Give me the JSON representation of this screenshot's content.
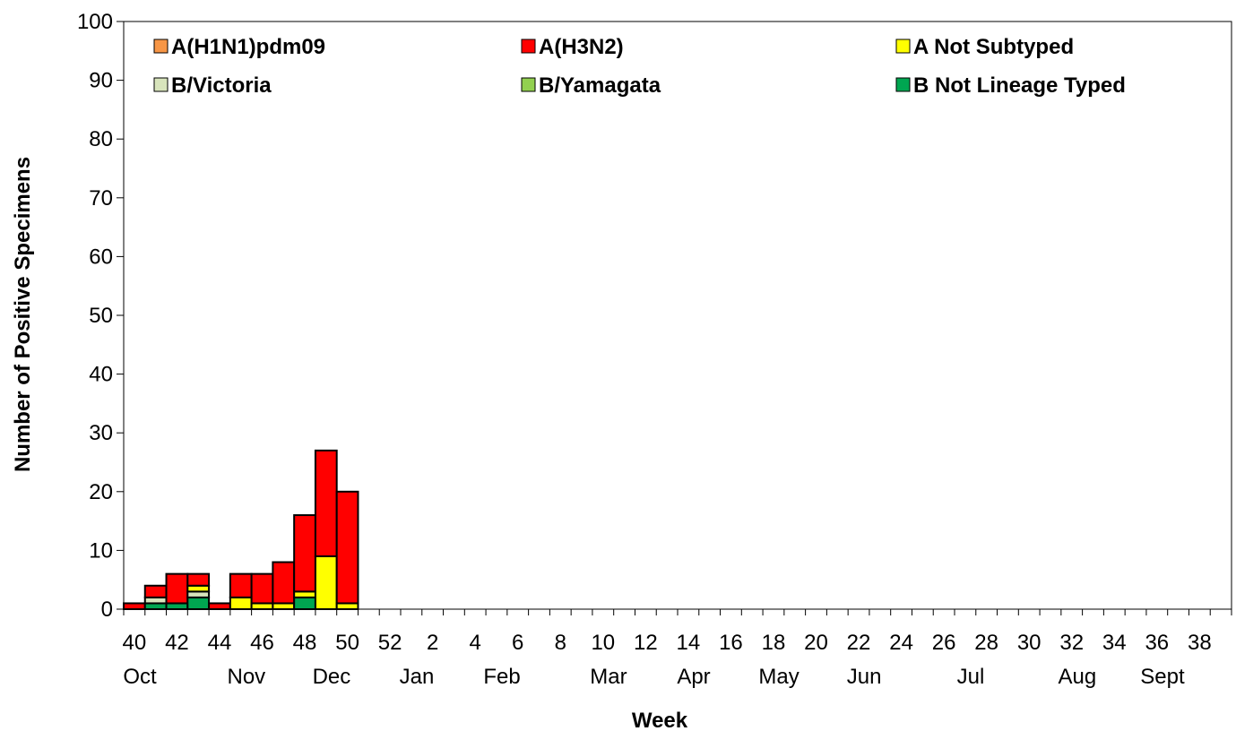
{
  "chart_data": {
    "type": "bar",
    "stacked": true,
    "xlabel": "Week",
    "ylabel": "Number of Positive Specimens",
    "ylim": [
      0,
      100
    ],
    "yticks": [
      0,
      10,
      20,
      30,
      40,
      50,
      60,
      70,
      80,
      90,
      100
    ],
    "weeks": [
      40,
      41,
      42,
      43,
      44,
      45,
      46,
      47,
      48,
      49,
      50,
      51,
      52,
      1,
      2,
      3,
      4,
      5,
      6,
      7,
      8,
      9,
      10,
      11,
      12,
      13,
      14,
      15,
      16,
      17,
      18,
      19,
      20,
      21,
      22,
      23,
      24,
      25,
      26,
      27,
      28,
      29,
      30,
      31,
      32,
      33,
      34,
      35,
      36,
      37,
      38,
      39
    ],
    "week_labels": [
      {
        "week": 40,
        "label": "40"
      },
      {
        "week": 42,
        "label": "42"
      },
      {
        "week": 44,
        "label": "44"
      },
      {
        "week": 46,
        "label": "46"
      },
      {
        "week": 48,
        "label": "48"
      },
      {
        "week": 50,
        "label": "50"
      },
      {
        "week": 52,
        "label": "52"
      },
      {
        "week": 2,
        "label": "2"
      },
      {
        "week": 4,
        "label": "4"
      },
      {
        "week": 6,
        "label": "6"
      },
      {
        "week": 8,
        "label": "8"
      },
      {
        "week": 10,
        "label": "10"
      },
      {
        "week": 12,
        "label": "12"
      },
      {
        "week": 14,
        "label": "14"
      },
      {
        "week": 16,
        "label": "16"
      },
      {
        "week": 18,
        "label": "18"
      },
      {
        "week": 20,
        "label": "20"
      },
      {
        "week": 22,
        "label": "22"
      },
      {
        "week": 24,
        "label": "24"
      },
      {
        "week": 26,
        "label": "26"
      },
      {
        "week": 28,
        "label": "28"
      },
      {
        "week": 30,
        "label": "30"
      },
      {
        "week": 32,
        "label": "32"
      },
      {
        "week": 34,
        "label": "34"
      },
      {
        "week": 36,
        "label": "36"
      },
      {
        "week": 38,
        "label": "38"
      }
    ],
    "month_labels": [
      {
        "week": 40,
        "label": "Oct"
      },
      {
        "week": 45,
        "label": "Nov"
      },
      {
        "week": 49,
        "label": "Dec"
      },
      {
        "week": 1,
        "label": "Jan"
      },
      {
        "week": 5,
        "label": "Feb"
      },
      {
        "week": 10,
        "label": "Mar"
      },
      {
        "week": 14,
        "label": "Apr"
      },
      {
        "week": 18,
        "label": "May"
      },
      {
        "week": 22,
        "label": "Jun"
      },
      {
        "week": 27,
        "label": "Jul"
      },
      {
        "week": 32,
        "label": "Aug"
      },
      {
        "week": 36,
        "label": "Sept"
      }
    ],
    "legend": {
      "position": "top",
      "columns": 3
    },
    "series": [
      {
        "name": "A(H1N1)pdm09",
        "color": "#f79646",
        "values": [
          0,
          0,
          0,
          0,
          0,
          0,
          0,
          0,
          0,
          0,
          0
        ]
      },
      {
        "name": "A(H3N2)",
        "color": "#ff0000",
        "values": [
          1,
          2,
          5,
          2,
          1,
          4,
          5,
          7,
          13,
          18,
          19
        ]
      },
      {
        "name": "A Not Subtyped",
        "color": "#ffff00",
        "values": [
          0,
          0,
          0,
          1,
          0,
          2,
          1,
          1,
          1,
          9,
          1
        ]
      },
      {
        "name": "B/Victoria",
        "color": "#d8e4bc",
        "values": [
          0,
          1,
          0,
          1,
          0,
          0,
          0,
          0,
          0,
          0,
          0
        ]
      },
      {
        "name": "B/Yamagata",
        "color": "#92d050",
        "values": [
          0,
          0,
          0,
          0,
          0,
          0,
          0,
          0,
          0,
          0,
          0
        ]
      },
      {
        "name": "B Not Lineage Typed",
        "color": "#00a651",
        "values": [
          0,
          1,
          1,
          2,
          0,
          0,
          0,
          0,
          2,
          0,
          0
        ]
      }
    ]
  }
}
